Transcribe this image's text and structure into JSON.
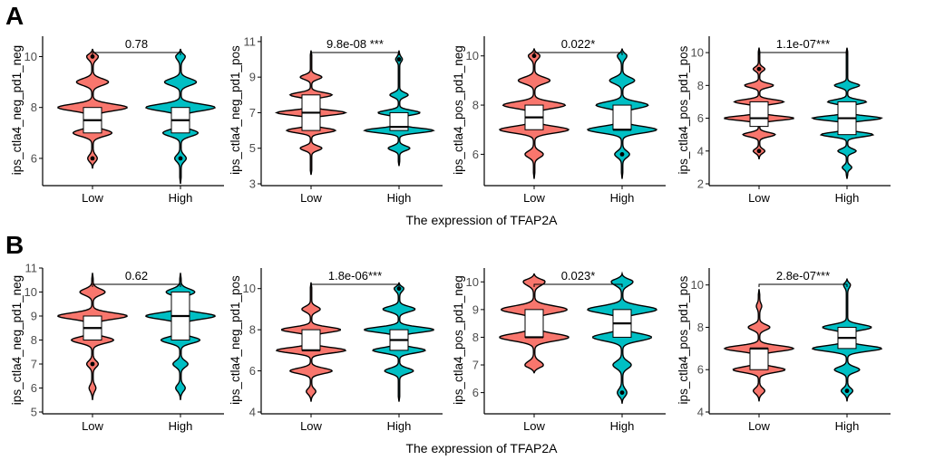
{
  "figure": {
    "panel_labels": [
      "A",
      "B"
    ],
    "x_caption": "The expression of TFAP2A",
    "colors": {
      "low": "#F8766D",
      "high": "#00BFC4"
    }
  },
  "chart_data": [
    {
      "type": "violin",
      "row": "A",
      "title": "",
      "ylabel": "ips_ctla4_neg_pd1_neg",
      "ylim": [
        5,
        10.8
      ],
      "yticks": [
        6,
        8,
        10
      ],
      "categories": [
        "Low",
        "High"
      ],
      "sig_label": "0.78",
      "groups": [
        {
          "name": "Low",
          "modes": [
            8,
            7,
            9,
            10,
            6
          ],
          "weights": [
            1,
            0.55,
            0.45,
            0.15,
            0.12
          ],
          "min": 5.6,
          "max": 10.3,
          "q1": 7,
          "median": 7.5,
          "q3": 8,
          "outliers": [
            10,
            6
          ]
        },
        {
          "name": "High",
          "modes": [
            8,
            7,
            9,
            6,
            10
          ],
          "weights": [
            1,
            0.5,
            0.45,
            0.15,
            0.12
          ],
          "min": 5.0,
          "max": 10.3,
          "q1": 7,
          "median": 7.5,
          "q3": 8,
          "outliers": [
            6
          ]
        }
      ]
    },
    {
      "type": "violin",
      "row": "A",
      "title": "",
      "ylabel": "ips_ctla4_neg_pd1_pos",
      "ylim": [
        3,
        11.3
      ],
      "yticks": [
        3,
        5,
        7,
        9,
        11
      ],
      "categories": [
        "Low",
        "High"
      ],
      "sig_label": "9.8e-08 ***",
      "groups": [
        {
          "name": "Low",
          "modes": [
            7,
            6,
            8,
            9,
            5
          ],
          "weights": [
            1,
            0.7,
            0.6,
            0.3,
            0.3
          ],
          "min": 3.5,
          "max": 10.5,
          "q1": 6,
          "median": 7,
          "q3": 8,
          "outliers": []
        },
        {
          "name": "High",
          "modes": [
            6,
            7,
            5,
            8,
            10
          ],
          "weights": [
            1,
            0.6,
            0.3,
            0.25,
            0.08
          ],
          "min": 4.0,
          "max": 10.5,
          "q1": 6,
          "median": 6.2,
          "q3": 7,
          "outliers": [
            10
          ]
        }
      ]
    },
    {
      "type": "violin",
      "row": "A",
      "title": "",
      "ylabel": "ips_ctla4_pos_pd1_neg",
      "ylim": [
        4.8,
        10.8
      ],
      "yticks": [
        6,
        8,
        10
      ],
      "categories": [
        "Low",
        "High"
      ],
      "sig_label": "0.022*",
      "groups": [
        {
          "name": "Low",
          "modes": [
            8,
            7,
            9,
            6,
            10
          ],
          "weights": [
            0.9,
            1,
            0.45,
            0.25,
            0.15
          ],
          "min": 5.0,
          "max": 10.3,
          "q1": 7,
          "median": 7.5,
          "q3": 8,
          "outliers": [
            10
          ]
        },
        {
          "name": "High",
          "modes": [
            7,
            8,
            9,
            6,
            10
          ],
          "weights": [
            1,
            0.75,
            0.35,
            0.2,
            0.12
          ],
          "min": 5.0,
          "max": 10.3,
          "q1": 7,
          "median": 7,
          "q3": 8,
          "outliers": [
            6
          ]
        }
      ]
    },
    {
      "type": "violin",
      "row": "A",
      "title": "",
      "ylabel": "ips_ctla4_pos_pd1_pos",
      "ylim": [
        2,
        11
      ],
      "yticks": [
        2,
        4,
        6,
        8,
        10
      ],
      "categories": [
        "Low",
        "High"
      ],
      "sig_label": "1.1e-07***",
      "groups": [
        {
          "name": "Low",
          "modes": [
            6,
            7,
            5,
            8,
            4,
            9
          ],
          "weights": [
            1,
            0.7,
            0.45,
            0.4,
            0.15,
            0.15
          ],
          "min": 3.5,
          "max": 10.3,
          "q1": 5.5,
          "median": 6,
          "q3": 7,
          "outliers": [
            9,
            4
          ]
        },
        {
          "name": "High",
          "modes": [
            6,
            5,
            7,
            8,
            4,
            3
          ],
          "weights": [
            1,
            0.75,
            0.55,
            0.35,
            0.25,
            0.12
          ],
          "min": 2.3,
          "max": 10.3,
          "q1": 5,
          "median": 6,
          "q3": 7,
          "outliers": []
        }
      ]
    },
    {
      "type": "violin",
      "row": "B",
      "title": "",
      "ylabel": "ips_ctla4_neg_pd1_neg",
      "ylim": [
        5,
        11
      ],
      "yticks": [
        5,
        6,
        7,
        8,
        9,
        10,
        11
      ],
      "categories": [
        "Low",
        "High"
      ],
      "sig_label": "0.62",
      "groups": [
        {
          "name": "Low",
          "modes": [
            9,
            8,
            10,
            7,
            6
          ],
          "weights": [
            1,
            0.6,
            0.35,
            0.15,
            0.08
          ],
          "min": 5.5,
          "max": 10.8,
          "q1": 8,
          "median": 8.5,
          "q3": 9,
          "outliers": [
            7
          ]
        },
        {
          "name": "High",
          "modes": [
            9,
            8,
            10,
            7,
            6
          ],
          "weights": [
            1,
            0.55,
            0.4,
            0.2,
            0.12
          ],
          "min": 5.5,
          "max": 10.8,
          "q1": 8,
          "median": 9,
          "q3": 10,
          "outliers": []
        }
      ]
    },
    {
      "type": "violin",
      "row": "B",
      "title": "",
      "ylabel": "ips_ctla4_neg_pd1_pos",
      "ylim": [
        4,
        11
      ],
      "yticks": [
        4,
        6,
        8,
        10
      ],
      "categories": [
        "Low",
        "High"
      ],
      "sig_label": "1.8e-06***",
      "groups": [
        {
          "name": "Low",
          "modes": [
            7,
            8,
            6,
            9,
            5
          ],
          "weights": [
            1,
            0.85,
            0.6,
            0.25,
            0.12
          ],
          "min": 4.5,
          "max": 10.3,
          "q1": 7,
          "median": 7,
          "q3": 8,
          "outliers": []
        },
        {
          "name": "High",
          "modes": [
            8,
            7,
            9,
            6,
            10
          ],
          "weights": [
            1,
            0.75,
            0.45,
            0.4,
            0.12
          ],
          "min": 4.5,
          "max": 10.3,
          "q1": 7,
          "median": 7.5,
          "q3": 8,
          "outliers": [
            10
          ]
        }
      ]
    },
    {
      "type": "violin",
      "row": "B",
      "title": "",
      "ylabel": "ips_ctla4_pos_pd1_neg",
      "ylim": [
        5.3,
        10.5
      ],
      "yticks": [
        6,
        7,
        8,
        9,
        10
      ],
      "categories": [
        "Low",
        "High"
      ],
      "sig_label": "0.023*",
      "groups": [
        {
          "name": "Low",
          "modes": [
            9,
            8,
            10,
            7
          ],
          "weights": [
            0.95,
            1,
            0.3,
            0.25
          ],
          "min": 6.7,
          "max": 10.3,
          "q1": 8,
          "median": 8,
          "q3": 9,
          "outliers": []
        },
        {
          "name": "High",
          "modes": [
            9,
            8,
            10,
            7,
            6
          ],
          "weights": [
            1,
            0.85,
            0.3,
            0.25,
            0.12
          ],
          "min": 5.6,
          "max": 10.3,
          "q1": 8,
          "median": 8.5,
          "q3": 9,
          "outliers": [
            6
          ]
        }
      ]
    },
    {
      "type": "violin",
      "row": "B",
      "title": "",
      "ylabel": "ips_ctla4_pos_pd1_pos",
      "ylim": [
        4,
        10.8
      ],
      "yticks": [
        4,
        6,
        8,
        10
      ],
      "categories": [
        "Low",
        "High"
      ],
      "sig_label": "2.8e-07***",
      "groups": [
        {
          "name": "Low",
          "modes": [
            7,
            6,
            8,
            5,
            9
          ],
          "weights": [
            1,
            0.75,
            0.3,
            0.15,
            0.06
          ],
          "min": 4.5,
          "max": 9.8,
          "q1": 6,
          "median": 7,
          "q3": 7,
          "outliers": []
        },
        {
          "name": "High",
          "modes": [
            7,
            8,
            6,
            5,
            10
          ],
          "weights": [
            1,
            0.7,
            0.35,
            0.15,
            0.08
          ],
          "min": 4.5,
          "max": 10.3,
          "q1": 7,
          "median": 7.5,
          "q3": 8,
          "outliers": [
            5
          ]
        }
      ]
    }
  ]
}
